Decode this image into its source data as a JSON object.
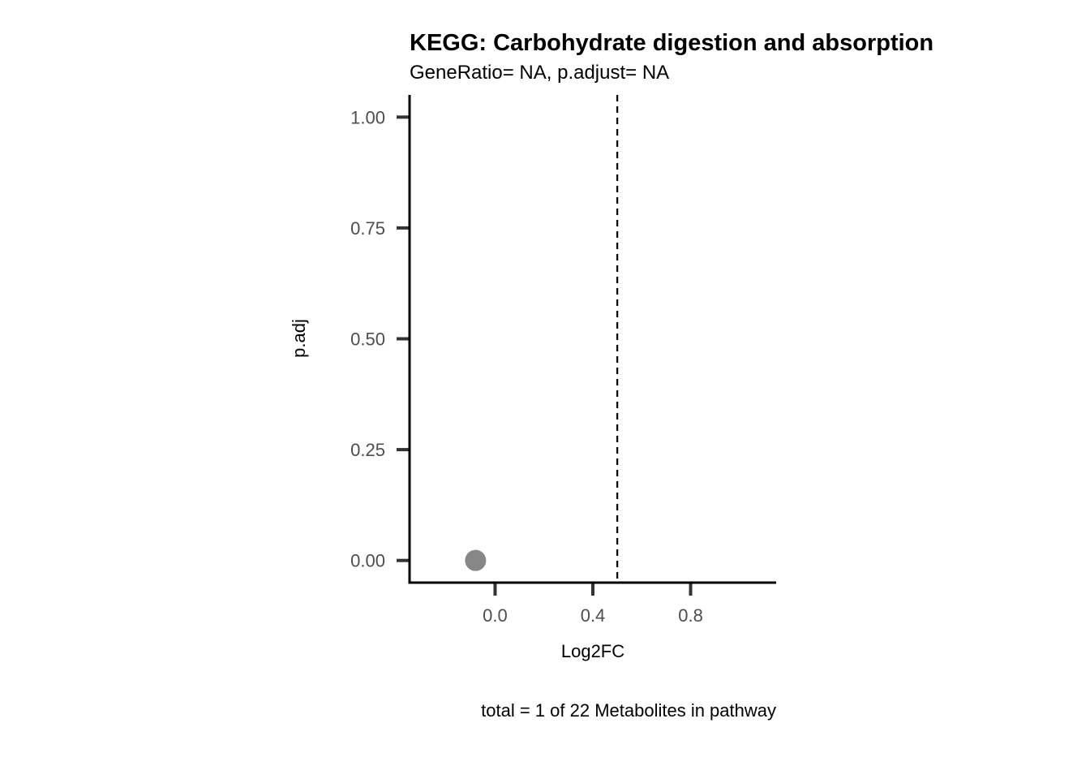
{
  "chart_data": {
    "type": "scatter",
    "title": "KEGG: Carbohydrate digestion and absorption",
    "subtitle": "GeneRatio= NA, p.adjust= NA",
    "xlabel": "Log2FC",
    "ylabel": "p.adj",
    "caption": "total = 1 of 22 Metabolites in pathway",
    "xlim": [
      -0.35,
      1.15
    ],
    "ylim": [
      -0.05,
      1.05
    ],
    "x_ticks": [
      0.0,
      0.4,
      0.8
    ],
    "x_tick_labels": [
      "0.0",
      "0.4",
      "0.8"
    ],
    "y_ticks": [
      0.0,
      0.25,
      0.5,
      0.75,
      1.0
    ],
    "y_tick_labels": [
      "0.00",
      "0.25",
      "0.50",
      "0.75",
      "1.00"
    ],
    "vline": {
      "x": 0.5,
      "style": "dashed",
      "color": "#000000"
    },
    "grid": false,
    "points": [
      {
        "x": -0.08,
        "y": 0.0,
        "color": "#878787"
      }
    ]
  }
}
